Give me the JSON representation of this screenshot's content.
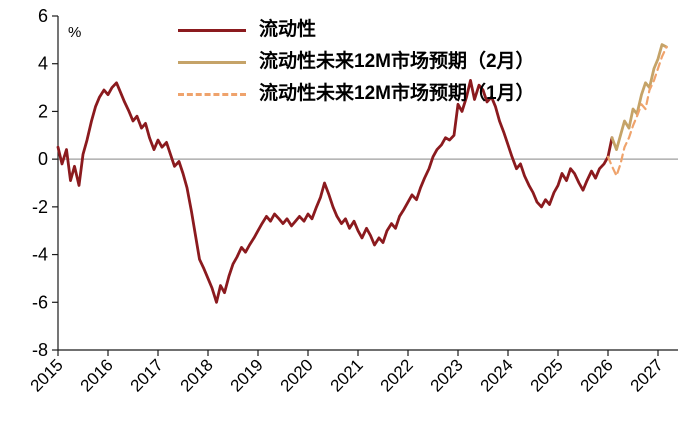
{
  "chart_data": {
    "type": "line",
    "ylabel": "%",
    "ylim": [
      -8,
      6
    ],
    "yticks": [
      6,
      4,
      2,
      0,
      -2,
      -4,
      -6,
      -8
    ],
    "xticks": [
      2015,
      2016,
      2017,
      2018,
      2019,
      2020,
      2021,
      2022,
      2023,
      2024,
      2025,
      2026,
      2027
    ],
    "x_range": [
      2015,
      2027.4
    ],
    "grid": "zero-line-only",
    "legend_position": "top-center",
    "colors": {
      "axis": "#1a1a1a",
      "zero_line": "#9e9e9e",
      "background": "#ffffff",
      "text": "#000000"
    },
    "series": [
      {
        "name": "流动性",
        "color": "#8B1A1E",
        "style": "solid",
        "width": 2.8,
        "points": [
          [
            2015.0,
            0.5
          ],
          [
            2015.08,
            -0.2
          ],
          [
            2015.17,
            0.4
          ],
          [
            2015.25,
            -0.9
          ],
          [
            2015.33,
            -0.3
          ],
          [
            2015.42,
            -1.1
          ],
          [
            2015.5,
            0.2
          ],
          [
            2015.58,
            0.8
          ],
          [
            2015.67,
            1.6
          ],
          [
            2015.75,
            2.2
          ],
          [
            2015.83,
            2.6
          ],
          [
            2015.92,
            2.9
          ],
          [
            2016.0,
            2.7
          ],
          [
            2016.08,
            3.0
          ],
          [
            2016.17,
            3.2
          ],
          [
            2016.25,
            2.8
          ],
          [
            2016.33,
            2.4
          ],
          [
            2016.42,
            2.0
          ],
          [
            2016.5,
            1.6
          ],
          [
            2016.58,
            1.8
          ],
          [
            2016.67,
            1.3
          ],
          [
            2016.75,
            1.5
          ],
          [
            2016.83,
            0.9
          ],
          [
            2016.92,
            0.4
          ],
          [
            2017.0,
            0.8
          ],
          [
            2017.08,
            0.5
          ],
          [
            2017.17,
            0.7
          ],
          [
            2017.25,
            0.2
          ],
          [
            2017.33,
            -0.3
          ],
          [
            2017.42,
            -0.1
          ],
          [
            2017.5,
            -0.6
          ],
          [
            2017.58,
            -1.2
          ],
          [
            2017.67,
            -2.2
          ],
          [
            2017.75,
            -3.2
          ],
          [
            2017.83,
            -4.2
          ],
          [
            2017.92,
            -4.6
          ],
          [
            2018.0,
            -5.0
          ],
          [
            2018.08,
            -5.4
          ],
          [
            2018.17,
            -6.0
          ],
          [
            2018.25,
            -5.3
          ],
          [
            2018.33,
            -5.6
          ],
          [
            2018.42,
            -4.9
          ],
          [
            2018.5,
            -4.4
          ],
          [
            2018.58,
            -4.1
          ],
          [
            2018.67,
            -3.7
          ],
          [
            2018.75,
            -3.9
          ],
          [
            2018.83,
            -3.6
          ],
          [
            2018.92,
            -3.3
          ],
          [
            2019.0,
            -3.0
          ],
          [
            2019.08,
            -2.7
          ],
          [
            2019.17,
            -2.4
          ],
          [
            2019.25,
            -2.6
          ],
          [
            2019.33,
            -2.3
          ],
          [
            2019.42,
            -2.5
          ],
          [
            2019.5,
            -2.7
          ],
          [
            2019.58,
            -2.5
          ],
          [
            2019.67,
            -2.8
          ],
          [
            2019.75,
            -2.6
          ],
          [
            2019.83,
            -2.4
          ],
          [
            2019.92,
            -2.6
          ],
          [
            2020.0,
            -2.3
          ],
          [
            2020.08,
            -2.5
          ],
          [
            2020.17,
            -2.0
          ],
          [
            2020.25,
            -1.6
          ],
          [
            2020.33,
            -1.0
          ],
          [
            2020.42,
            -1.5
          ],
          [
            2020.5,
            -2.0
          ],
          [
            2020.58,
            -2.4
          ],
          [
            2020.67,
            -2.7
          ],
          [
            2020.75,
            -2.5
          ],
          [
            2020.83,
            -2.9
          ],
          [
            2020.92,
            -2.6
          ],
          [
            2021.0,
            -3.0
          ],
          [
            2021.08,
            -3.3
          ],
          [
            2021.17,
            -2.9
          ],
          [
            2021.25,
            -3.2
          ],
          [
            2021.33,
            -3.6
          ],
          [
            2021.42,
            -3.3
          ],
          [
            2021.5,
            -3.5
          ],
          [
            2021.58,
            -3.0
          ],
          [
            2021.67,
            -2.7
          ],
          [
            2021.75,
            -2.9
          ],
          [
            2021.83,
            -2.4
          ],
          [
            2021.92,
            -2.1
          ],
          [
            2022.0,
            -1.8
          ],
          [
            2022.08,
            -1.5
          ],
          [
            2022.17,
            -1.7
          ],
          [
            2022.25,
            -1.2
          ],
          [
            2022.33,
            -0.8
          ],
          [
            2022.42,
            -0.4
          ],
          [
            2022.5,
            0.1
          ],
          [
            2022.58,
            0.4
          ],
          [
            2022.67,
            0.6
          ],
          [
            2022.75,
            0.9
          ],
          [
            2022.83,
            0.8
          ],
          [
            2022.92,
            1.0
          ],
          [
            2023.0,
            2.3
          ],
          [
            2023.08,
            2.0
          ],
          [
            2023.17,
            2.6
          ],
          [
            2023.25,
            3.3
          ],
          [
            2023.33,
            2.5
          ],
          [
            2023.42,
            3.1
          ],
          [
            2023.5,
            2.9
          ],
          [
            2023.58,
            2.4
          ],
          [
            2023.67,
            2.6
          ],
          [
            2023.75,
            2.2
          ],
          [
            2023.83,
            1.6
          ],
          [
            2023.92,
            1.1
          ],
          [
            2024.0,
            0.6
          ],
          [
            2024.08,
            0.1
          ],
          [
            2024.17,
            -0.4
          ],
          [
            2024.25,
            -0.2
          ],
          [
            2024.33,
            -0.7
          ],
          [
            2024.42,
            -1.1
          ],
          [
            2024.5,
            -1.4
          ],
          [
            2024.58,
            -1.8
          ],
          [
            2024.67,
            -2.0
          ],
          [
            2024.75,
            -1.7
          ],
          [
            2024.83,
            -1.9
          ],
          [
            2024.92,
            -1.4
          ],
          [
            2025.0,
            -1.1
          ],
          [
            2025.08,
            -0.6
          ],
          [
            2025.17,
            -0.9
          ],
          [
            2025.25,
            -0.4
          ],
          [
            2025.33,
            -0.6
          ],
          [
            2025.42,
            -1.0
          ],
          [
            2025.5,
            -1.3
          ],
          [
            2025.58,
            -0.9
          ],
          [
            2025.67,
            -0.5
          ],
          [
            2025.75,
            -0.8
          ],
          [
            2025.83,
            -0.4
          ],
          [
            2025.92,
            -0.2
          ],
          [
            2026.0,
            0.1
          ],
          [
            2026.08,
            0.9
          ]
        ]
      },
      {
        "name": "流动性未来12M市场预期（2月）",
        "color": "#C5A368",
        "style": "solid",
        "width": 2.8,
        "points": [
          [
            2026.08,
            0.9
          ],
          [
            2026.17,
            0.4
          ],
          [
            2026.25,
            1.0
          ],
          [
            2026.33,
            1.6
          ],
          [
            2026.42,
            1.3
          ],
          [
            2026.5,
            2.1
          ],
          [
            2026.58,
            1.9
          ],
          [
            2026.67,
            2.7
          ],
          [
            2026.75,
            3.2
          ],
          [
            2026.83,
            3.0
          ],
          [
            2026.92,
            3.8
          ],
          [
            2027.0,
            4.2
          ],
          [
            2027.08,
            4.8
          ],
          [
            2027.17,
            4.7
          ]
        ]
      },
      {
        "name": "流动性未来12M市场预期（1月）",
        "color": "#EFA36C",
        "style": "dashed",
        "width": 2.2,
        "points": [
          [
            2026.0,
            0.1
          ],
          [
            2026.08,
            -0.3
          ],
          [
            2026.17,
            -0.7
          ],
          [
            2026.25,
            -0.2
          ],
          [
            2026.33,
            0.5
          ],
          [
            2026.42,
            0.9
          ],
          [
            2026.5,
            1.4
          ],
          [
            2026.58,
            1.8
          ],
          [
            2026.67,
            2.3
          ],
          [
            2026.75,
            2.1
          ],
          [
            2026.83,
            2.9
          ],
          [
            2026.92,
            3.3
          ],
          [
            2027.0,
            3.8
          ],
          [
            2027.08,
            4.3
          ],
          [
            2027.17,
            4.7
          ]
        ]
      }
    ]
  }
}
